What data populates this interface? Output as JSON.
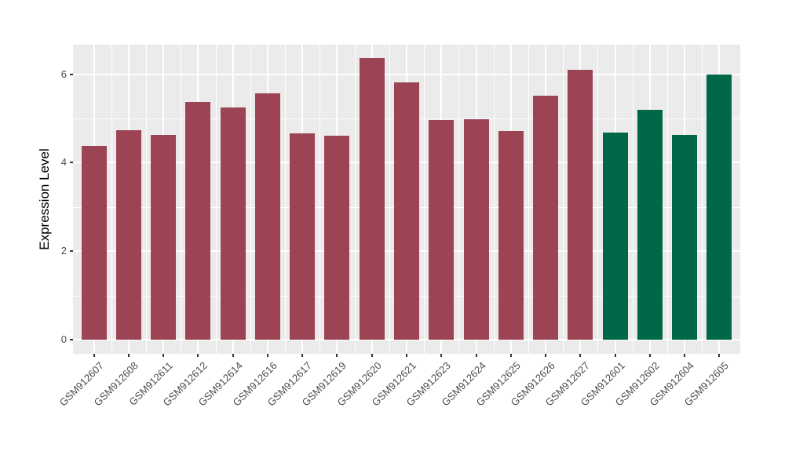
{
  "figure": {
    "background_color": "#FFFFFF",
    "panel_background_color": "#EBEBEB",
    "gridline_color": "#FFFFFF",
    "axis_text_color": "#4D4D4D",
    "tick_mark_color": "#333333"
  },
  "chart_data": {
    "type": "bar",
    "title": "",
    "xlabel": "",
    "ylabel": "Expression Level",
    "legend": false,
    "grid": true,
    "ylim": [
      -0.32,
      6.68
    ],
    "yticks": [
      0,
      2,
      4,
      6
    ],
    "yticks_minor": [
      1,
      3,
      5
    ],
    "categories": [
      "GSM912607",
      "GSM912608",
      "GSM912611",
      "GSM912612",
      "GSM912614",
      "GSM912616",
      "GSM912617",
      "GSM912619",
      "GSM912620",
      "GSM912621",
      "GSM912623",
      "GSM912624",
      "GSM912625",
      "GSM912626",
      "GSM912627",
      "GSM912601",
      "GSM912602",
      "GSM912604",
      "GSM912605"
    ],
    "values": [
      4.38,
      4.73,
      4.62,
      5.38,
      5.24,
      5.56,
      4.66,
      4.61,
      6.36,
      5.81,
      4.96,
      4.98,
      4.71,
      5.51,
      6.1,
      4.68,
      5.2,
      4.62,
      5.99
    ],
    "color_keys": [
      "maroon",
      "maroon",
      "maroon",
      "maroon",
      "maroon",
      "maroon",
      "maroon",
      "maroon",
      "maroon",
      "maroon",
      "maroon",
      "maroon",
      "maroon",
      "maroon",
      "maroon",
      "green",
      "green",
      "green",
      "green"
    ],
    "palette": {
      "maroon": "#9C4453",
      "green": "#006748"
    }
  }
}
